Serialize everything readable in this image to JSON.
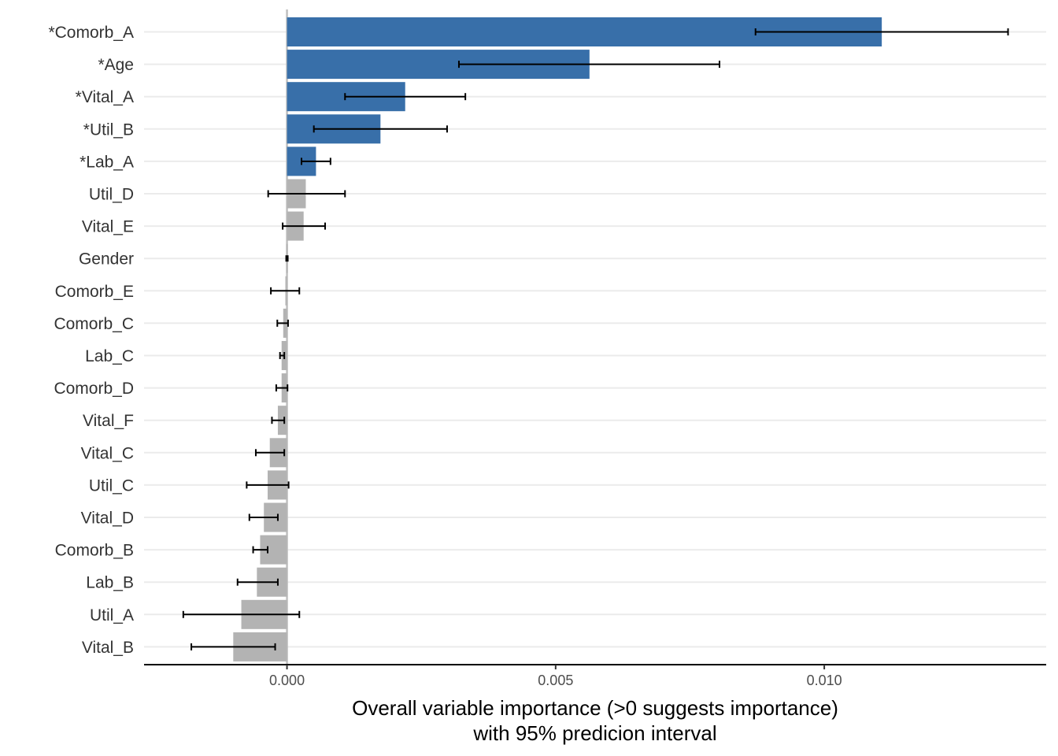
{
  "chart_data": {
    "type": "bar",
    "orientation": "horizontal",
    "categories": [
      "*Comorb_A",
      "*Age",
      "*Vital_A",
      "*Util_B",
      "*Lab_A",
      "Util_D",
      "Vital_E",
      "Gender",
      "Comorb_E",
      "Comorb_C",
      "Lab_C",
      "Comorb_D",
      "Vital_F",
      "Vital_C",
      "Util_C",
      "Vital_D",
      "Comorb_B",
      "Lab_B",
      "Util_A",
      "Vital_B"
    ],
    "values": [
      0.01107,
      0.00563,
      0.0022,
      0.00174,
      0.00054,
      0.00035,
      0.00031,
      0.0,
      -3e-05,
      -7e-05,
      -0.0001,
      -0.0001,
      -0.00017,
      -0.00032,
      -0.00036,
      -0.00043,
      -0.0005,
      -0.00056,
      -0.00085,
      -0.001
    ],
    "ci_low": [
      0.00872,
      0.0032,
      0.00108,
      0.0005,
      0.00027,
      -0.00035,
      -8e-05,
      0.0,
      -0.0003,
      -0.00018,
      -0.00013,
      -0.0002,
      -0.00028,
      -0.00058,
      -0.00075,
      -0.0007,
      -0.00063,
      -0.00092,
      -0.00193,
      -0.00178
    ],
    "ci_high": [
      0.01342,
      0.00805,
      0.00332,
      0.00298,
      0.00081,
      0.00108,
      0.00071,
      0.0,
      0.00023,
      2e-05,
      -5e-05,
      1e-05,
      -5e-05,
      -5e-05,
      3e-05,
      -0.00017,
      -0.00036,
      -0.00017,
      0.00023,
      -0.00022
    ],
    "significant": [
      true,
      true,
      true,
      true,
      true,
      false,
      false,
      false,
      false,
      false,
      false,
      false,
      false,
      false,
      false,
      false,
      false,
      false,
      false,
      false
    ],
    "x_ticks": [
      0.0,
      0.005,
      0.01
    ],
    "x_tick_labels": [
      "0.000",
      "0.005",
      "0.010"
    ],
    "xlim": [
      -0.00266,
      0.01413
    ],
    "xlabel": [
      "Overall variable importance (>0 suggests importance)",
      "with 95% predicion interval"
    ],
    "ylabel": "",
    "title": "",
    "grid": "horizontal-major",
    "colors": {
      "significant": "#386fa9",
      "other": "#b3b3b3",
      "errorbar": "#000000",
      "gridline": "#ebebeb",
      "zero_line": "#bfbfbf",
      "axis_line": "#000000"
    }
  }
}
